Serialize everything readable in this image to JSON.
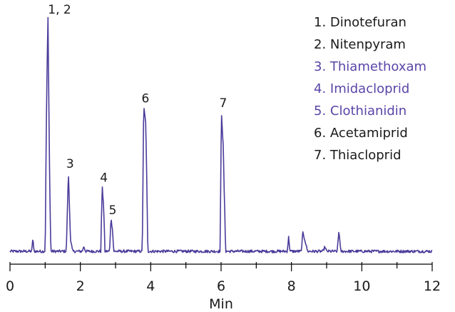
{
  "chart_data": {
    "type": "line",
    "xlabel": "Min",
    "ylabel": "",
    "xlim": [
      0,
      12
    ],
    "xticks": [
      0,
      2,
      4,
      6,
      8,
      10,
      12
    ],
    "minor_tick_step": 1,
    "grid": false,
    "line_color": "#4b3b9a",
    "accent_text_color": "#5a45a8",
    "series": [
      {
        "x": [
          0.62,
          0.65,
          0.68,
          0.72,
          1.0,
          1.04,
          1.08,
          1.12,
          1.16,
          1.6,
          1.66,
          1.72,
          1.78,
          2.05,
          2.1,
          2.15,
          2.58,
          2.62,
          2.66,
          2.7,
          2.83,
          2.87,
          2.91,
          2.95,
          3.76,
          3.8,
          3.86,
          3.92,
          5.97,
          6.01,
          6.06,
          6.13,
          7.88,
          7.92,
          7.96,
          8.28,
          8.32,
          8.38,
          8.46,
          8.9,
          8.95,
          9.0,
          9.3,
          9.35,
          9.4
        ],
        "y": [
          0.0,
          0.06,
          0.0,
          0.0,
          0.0,
          0.65,
          1.0,
          0.4,
          0.0,
          0.0,
          0.34,
          0.05,
          0.0,
          0.0,
          0.02,
          0.0,
          0.0,
          0.28,
          0.2,
          0.0,
          0.0,
          0.14,
          0.1,
          0.0,
          0.0,
          0.62,
          0.55,
          0.0,
          0.0,
          0.6,
          0.45,
          0.0,
          0.0,
          0.06,
          0.0,
          0.0,
          0.08,
          0.05,
          0.0,
          0.0,
          0.02,
          0.0,
          0.0,
          0.09,
          0.0
        ]
      }
    ],
    "peak_labels": [
      {
        "text": "1, 2",
        "x": 1.08,
        "y": 1.0
      },
      {
        "text": "3",
        "x": 1.66,
        "y": 0.34
      },
      {
        "text": "4",
        "x": 2.62,
        "y": 0.28
      },
      {
        "text": "5",
        "x": 2.87,
        "y": 0.14
      },
      {
        "text": "6",
        "x": 3.8,
        "y": 0.62
      },
      {
        "text": "7",
        "x": 6.01,
        "y": 0.6
      }
    ],
    "legend": {
      "position": "top-right",
      "entries": [
        {
          "text": "1. Dinotefuran",
          "highlighted": false
        },
        {
          "text": "2. Nitenpyram",
          "highlighted": false
        },
        {
          "text": "3. Thiamethoxam",
          "highlighted": true
        },
        {
          "text": "4. Imidacloprid",
          "highlighted": true
        },
        {
          "text": "5. Clothianidin",
          "highlighted": true
        },
        {
          "text": "6. Acetamiprid",
          "highlighted": false
        },
        {
          "text": "7. Thiacloprid",
          "highlighted": false
        }
      ]
    }
  }
}
